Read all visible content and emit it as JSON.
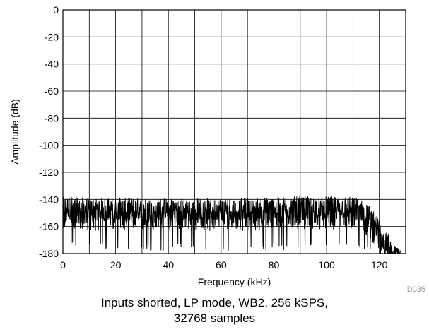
{
  "chart_data": {
    "type": "line",
    "xlabel": "Frequency (kHz)",
    "ylabel": "Amplitude (dB)",
    "xlim": [
      0,
      130
    ],
    "ylim": [
      -180,
      0
    ],
    "xticks": [
      0,
      20,
      40,
      60,
      80,
      100,
      120
    ],
    "yticks": [
      0,
      -20,
      -40,
      -60,
      -80,
      -100,
      -120,
      -140,
      -160,
      -180
    ],
    "grid": true,
    "legend": "none",
    "line_color": "#000000",
    "series": [
      {
        "x": [
          0,
          5,
          10,
          20,
          30,
          40,
          50,
          60,
          70,
          80,
          90,
          100,
          105,
          110,
          112,
          114,
          116,
          118,
          120,
          122,
          124,
          126,
          128
        ],
        "values": [
          -146,
          -146,
          -147,
          -147,
          -147,
          -147,
          -147,
          -147,
          -147,
          -146,
          -146,
          -146,
          -146,
          -146,
          -147,
          -149,
          -152,
          -157,
          -163,
          -170,
          -175,
          -178,
          -179
        ]
      }
    ],
    "noise_envelope": {
      "x": [
        0,
        20,
        40,
        60,
        80,
        100,
        110,
        112,
        114,
        116,
        118,
        120,
        122,
        124,
        126,
        128
      ],
      "upper": [
        -135,
        -136,
        -137,
        -136,
        -135,
        -134,
        -134,
        -135,
        -137,
        -140,
        -146,
        -152,
        -160,
        -168,
        -174,
        -177
      ],
      "lower": [
        -175,
        -178,
        -178,
        -178,
        -178,
        -178,
        -178,
        -178,
        -178,
        -179,
        -180,
        -180,
        -180,
        -180,
        -180,
        -180
      ]
    }
  },
  "code_label": "D035",
  "caption": {
    "line1": "Inputs shorted, LP mode, WB2, 256 kSPS,",
    "line2": "32768 samples"
  }
}
